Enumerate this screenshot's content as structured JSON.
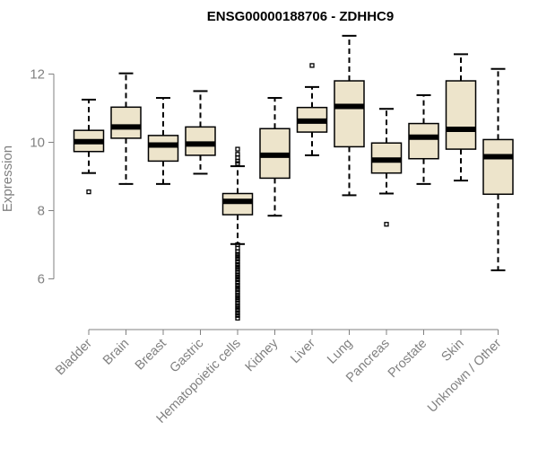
{
  "chart_data": {
    "type": "box",
    "title": "ENSG00000188706 - ZDHHC9",
    "xlabel": "",
    "ylabel": "Expression",
    "ylim": [
      4.7,
      13.3
    ],
    "yticks": [
      6,
      8,
      10,
      12
    ],
    "grid": false,
    "categories": [
      "Bladder",
      "Brain",
      "Breast",
      "Gastric",
      "Hematopoietic cells",
      "Kidney",
      "Liver",
      "Lung",
      "Pancreas",
      "Prostate",
      "Skin",
      "Unknown / Other"
    ],
    "boxes": [
      {
        "name": "Bladder",
        "min": 9.1,
        "q1": 9.73,
        "median": 10.02,
        "q3": 10.35,
        "max": 11.25,
        "outliers": [
          8.55
        ]
      },
      {
        "name": "Brain",
        "min": 8.78,
        "q1": 10.12,
        "median": 10.45,
        "q3": 11.03,
        "max": 12.02,
        "outliers": []
      },
      {
        "name": "Breast",
        "min": 8.78,
        "q1": 9.45,
        "median": 9.92,
        "q3": 10.2,
        "max": 11.3,
        "outliers": []
      },
      {
        "name": "Gastric",
        "min": 9.08,
        "q1": 9.62,
        "median": 9.95,
        "q3": 10.45,
        "max": 11.5,
        "outliers": []
      },
      {
        "name": "Hematopoietic cells",
        "min": 7.02,
        "q1": 7.88,
        "median": 8.27,
        "q3": 8.5,
        "max": 9.3,
        "outliers": [
          9.8,
          9.65,
          9.55,
          9.45,
          9.38,
          7.0,
          6.9,
          6.8,
          6.72,
          6.65,
          6.58,
          6.5,
          6.42,
          6.35,
          6.28,
          6.2,
          6.12,
          6.05,
          5.98,
          5.9,
          5.82,
          5.75,
          5.68,
          5.6,
          5.52,
          5.45,
          5.38,
          5.3,
          5.22,
          5.15,
          5.08,
          5.0,
          4.93,
          4.85
        ]
      },
      {
        "name": "Kidney",
        "min": 7.85,
        "q1": 8.95,
        "median": 9.62,
        "q3": 10.4,
        "max": 11.3,
        "outliers": []
      },
      {
        "name": "Liver",
        "min": 9.62,
        "q1": 10.3,
        "median": 10.62,
        "q3": 11.02,
        "max": 11.62,
        "outliers": [
          12.25
        ]
      },
      {
        "name": "Lung",
        "min": 8.45,
        "q1": 9.87,
        "median": 11.05,
        "q3": 11.8,
        "max": 13.12,
        "outliers": []
      },
      {
        "name": "Pancreas",
        "min": 8.5,
        "q1": 9.1,
        "median": 9.48,
        "q3": 9.98,
        "max": 10.98,
        "outliers": [
          7.6
        ]
      },
      {
        "name": "Prostate",
        "min": 8.78,
        "q1": 9.52,
        "median": 10.15,
        "q3": 10.55,
        "max": 11.38,
        "outliers": []
      },
      {
        "name": "Skin",
        "min": 8.88,
        "q1": 9.8,
        "median": 10.38,
        "q3": 11.8,
        "max": 12.58,
        "outliers": []
      },
      {
        "name": "Unknown / Other",
        "min": 6.25,
        "q1": 8.48,
        "median": 9.58,
        "q3": 10.08,
        "max": 12.15,
        "outliers": []
      }
    ],
    "colors": {
      "box_fill": "#ede4cb",
      "box_stroke": "#000000",
      "axis": "#808080",
      "title": "#000000"
    }
  }
}
